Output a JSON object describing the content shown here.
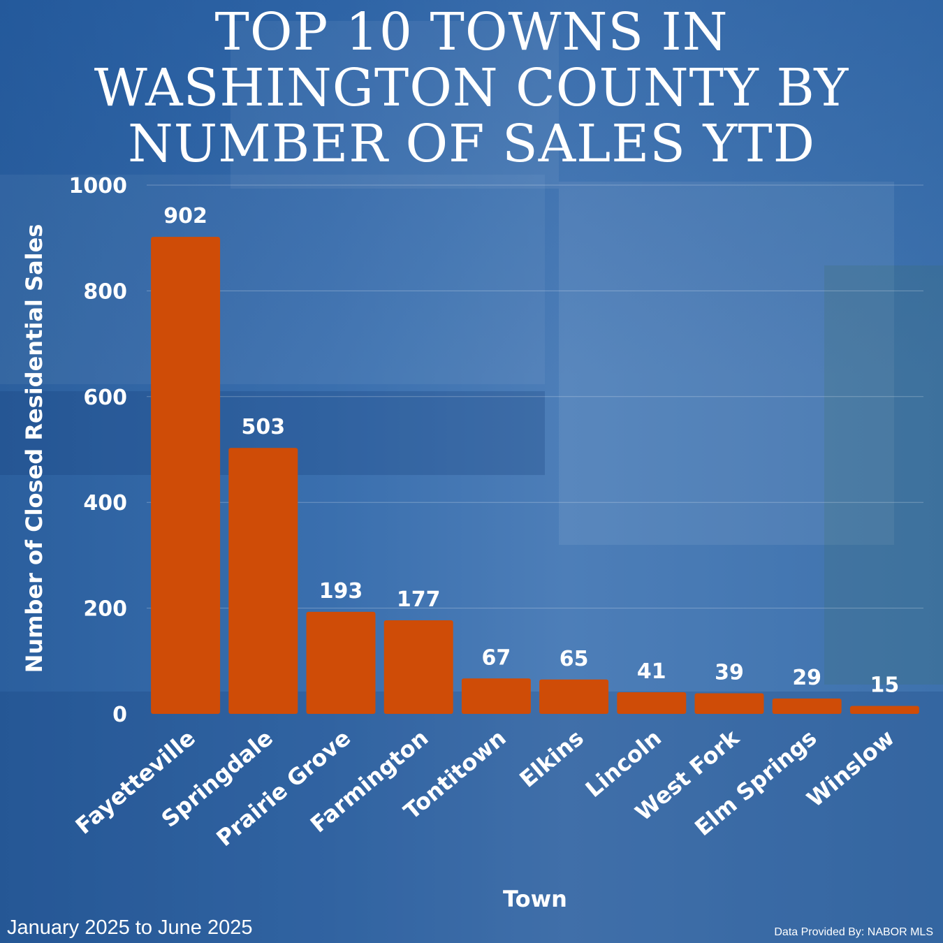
{
  "chart_data": {
    "type": "bar",
    "title": "TOP 10 TOWNS IN WASHINGTON COUNTY BY NUMBER OF SALES YTD",
    "xlabel": "Town",
    "ylabel": "Number of Closed Residential Sales",
    "categories": [
      "Fayetteville",
      "Springdale",
      "Prairie Grove",
      "Farmington",
      "Tontitown",
      "Elkins",
      "Lincoln",
      "West Fork",
      "Elm Springs",
      "Winslow"
    ],
    "values": [
      902,
      503,
      193,
      177,
      67,
      65,
      41,
      39,
      29,
      15
    ],
    "ylim": [
      0,
      1000
    ],
    "yticks": [
      0,
      200,
      400,
      600,
      800,
      1000
    ],
    "grid": true,
    "bar_color": "#cf4c07"
  },
  "footer": {
    "date_range": "January 2025 to June 2025",
    "source": "Data Provided By: NABOR MLS"
  }
}
